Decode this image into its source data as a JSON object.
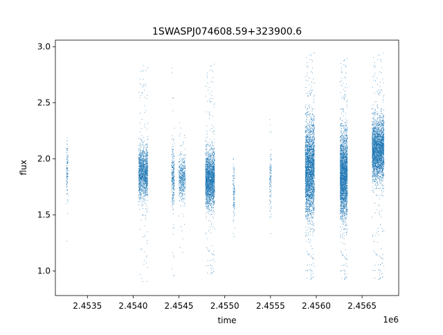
{
  "chart_data": {
    "type": "scatter",
    "title": "1SWASPJ074608.59+323900.6",
    "xlabel": "time",
    "ylabel": "flux",
    "x_offset_label": "1e6",
    "xlim": [
      2453150,
      2456900
    ],
    "ylim": [
      0.78,
      3.06
    ],
    "x_ticks": [
      2453500,
      2454000,
      2454500,
      2455000,
      2455500,
      2456000,
      2456500
    ],
    "x_tick_labels": [
      "2.4535",
      "2.4540",
      "2.4545",
      "2.4550",
      "2.4555",
      "2.4560",
      "2.4565"
    ],
    "y_ticks": [
      1.0,
      1.5,
      2.0,
      2.5,
      3.0
    ],
    "y_tick_labels": [
      "1.0",
      "1.5",
      "2.0",
      "2.5",
      "3.0"
    ],
    "grid": false,
    "marker_color": "#1f77b4",
    "series": [
      {
        "clusters": [
          {
            "x_range": [
              2453270,
              2453290
            ],
            "y_center": 1.88,
            "y_spread": 0.14,
            "y_min": 1.15,
            "y_max": 2.27,
            "n": 120
          },
          {
            "x_range": [
              2454060,
              2454160
            ],
            "y_center": 1.87,
            "y_spread": 0.11,
            "y_min": 0.9,
            "y_max": 2.84,
            "n": 1500
          },
          {
            "x_range": [
              2454420,
              2454450
            ],
            "y_center": 1.85,
            "y_spread": 0.13,
            "y_min": 0.92,
            "y_max": 2.9,
            "n": 300
          },
          {
            "x_range": [
              2454500,
              2454570
            ],
            "y_center": 1.82,
            "y_spread": 0.09,
            "y_min": 1.15,
            "y_max": 2.35,
            "n": 500
          },
          {
            "x_range": [
              2454790,
              2454890
            ],
            "y_center": 1.82,
            "y_spread": 0.12,
            "y_min": 0.95,
            "y_max": 2.85,
            "n": 2200
          },
          {
            "x_range": [
              2455090,
              2455110
            ],
            "y_center": 1.7,
            "y_spread": 0.12,
            "y_min": 1.3,
            "y_max": 2.0,
            "n": 120
          },
          {
            "x_range": [
              2455490,
              2455510
            ],
            "y_center": 1.8,
            "y_spread": 0.12,
            "y_min": 1.2,
            "y_max": 2.38,
            "n": 120
          },
          {
            "x_range": [
              2455880,
              2455980
            ],
            "y_center": 1.9,
            "y_spread": 0.2,
            "y_min": 0.9,
            "y_max": 2.95,
            "n": 3500
          },
          {
            "x_range": [
              2456260,
              2456340
            ],
            "y_center": 1.85,
            "y_spread": 0.18,
            "y_min": 0.9,
            "y_max": 2.9,
            "n": 3000
          },
          {
            "x_range": [
              2456610,
              2456740
            ],
            "y_center": 2.08,
            "y_spread": 0.13,
            "y_min": 0.9,
            "y_max": 2.95,
            "n": 3500
          }
        ]
      }
    ]
  }
}
